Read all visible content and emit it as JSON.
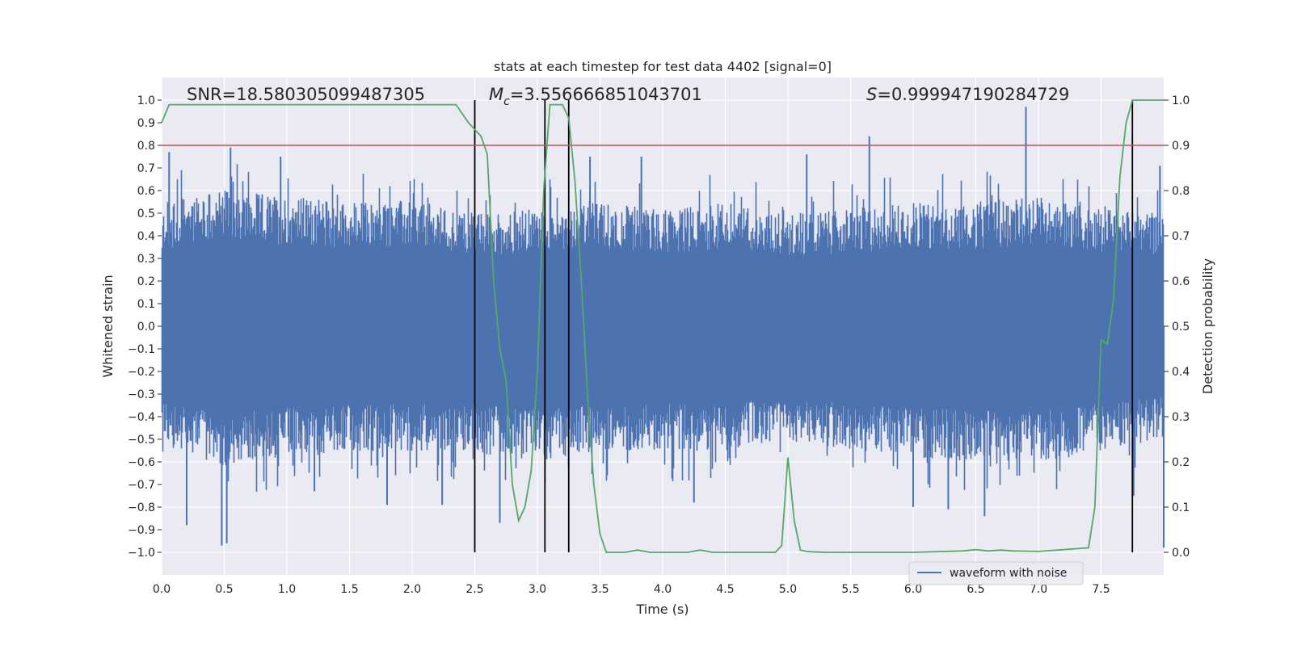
{
  "chart_data": {
    "type": "line",
    "title": "stats at each timestep for test data 4402 [signal=0]",
    "xlabel": "Time (s)",
    "ylabel_left": "Whitened strain",
    "ylabel_right": "Detection probability",
    "xlim": [
      0,
      8
    ],
    "ylim_left": [
      -1.1,
      1.1
    ],
    "ylim_right": [
      -0.05,
      1.05
    ],
    "x_ticks": [
      "0.0",
      "0.5",
      "1.0",
      "1.5",
      "2.0",
      "2.5",
      "3.0",
      "3.5",
      "4.0",
      "4.5",
      "5.0",
      "5.5",
      "6.0",
      "6.5",
      "7.0",
      "7.5"
    ],
    "y_ticks_left": [
      "1.0",
      "0.9",
      "0.8",
      "0.7",
      "0.6",
      "0.5",
      "0.4",
      "0.3",
      "0.2",
      "0.1",
      "0.0",
      "−0.1",
      "−0.2",
      "−0.3",
      "−0.4",
      "−0.5",
      "−0.6",
      "−0.7",
      "−0.8",
      "−0.9",
      "−1.0"
    ],
    "y_ticks_right": [
      "1.0",
      "0.9",
      "0.8",
      "0.7",
      "0.6",
      "0.5",
      "0.4",
      "0.3",
      "0.2",
      "0.1",
      "0.0"
    ],
    "grid": true,
    "annotations": {
      "snr": "SNR=18.580305099487305",
      "mc_symbol": "M",
      "mc_sub": "c",
      "mc_value": "=3.556666851043701",
      "s_symbol": "S",
      "s_value": "=0.999947190284729"
    },
    "threshold": {
      "axis": "right",
      "value": 0.9,
      "color": "#c44e52"
    },
    "vlines": [
      2.5,
      3.06,
      3.25,
      7.75
    ],
    "waveform": {
      "name": "waveform with noise",
      "color": "#4c72b0",
      "envelope_x": [
        0.0,
        0.5,
        1.0,
        1.5,
        2.0,
        2.5,
        3.0,
        3.5,
        4.0,
        4.5,
        5.0,
        5.5,
        6.0,
        6.5,
        7.0,
        7.5,
        8.0
      ],
      "envelope_upper": [
        0.55,
        0.6,
        0.58,
        0.55,
        0.56,
        0.5,
        0.52,
        0.55,
        0.52,
        0.55,
        0.5,
        0.52,
        0.55,
        0.55,
        0.58,
        0.52,
        0.5
      ],
      "envelope_lower": [
        -0.55,
        -0.62,
        -0.58,
        -0.56,
        -0.55,
        -0.55,
        -0.6,
        -0.55,
        -0.55,
        -0.55,
        -0.5,
        -0.55,
        -0.58,
        -0.6,
        -0.6,
        -0.55,
        -0.5
      ],
      "peaks": [
        {
          "x": 0.06,
          "y": 0.77
        },
        {
          "x": 0.55,
          "y": 0.79
        },
        {
          "x": 0.48,
          "y": -0.97
        },
        {
          "x": 0.52,
          "y": -0.96
        },
        {
          "x": 0.2,
          "y": -0.88
        },
        {
          "x": 0.95,
          "y": 0.75
        },
        {
          "x": 1.8,
          "y": -0.79
        },
        {
          "x": 2.24,
          "y": -0.79
        },
        {
          "x": 2.7,
          "y": -0.87
        },
        {
          "x": 3.42,
          "y": 0.75
        },
        {
          "x": 3.83,
          "y": 0.75
        },
        {
          "x": 5.65,
          "y": 0.84
        },
        {
          "x": 6.9,
          "y": 0.97
        },
        {
          "x": 6.57,
          "y": -0.84
        },
        {
          "x": 6.0,
          "y": -0.8
        },
        {
          "x": 6.28,
          "y": -0.81
        },
        {
          "x": 7.97,
          "y": 0.71
        },
        {
          "x": 7.76,
          "y": -0.75
        },
        {
          "x": 8.0,
          "y": -0.98
        },
        {
          "x": 5.15,
          "y": 0.76
        },
        {
          "x": 4.25,
          "y": -0.78
        },
        {
          "x": 1.22,
          "y": -0.73
        }
      ]
    },
    "probability": {
      "name": "detection probability",
      "color": "#55a868",
      "x": [
        0.0,
        0.06,
        0.3,
        0.6,
        1.0,
        1.5,
        2.0,
        2.2,
        2.35,
        2.4,
        2.45,
        2.55,
        2.6,
        2.65,
        2.7,
        2.75,
        2.8,
        2.85,
        2.9,
        2.95,
        3.0,
        3.05,
        3.1,
        3.15,
        3.2,
        3.25,
        3.3,
        3.35,
        3.4,
        3.45,
        3.5,
        3.55,
        3.6,
        3.65,
        3.7,
        3.8,
        3.9,
        4.0,
        4.2,
        4.3,
        4.4,
        4.6,
        4.8,
        4.9,
        4.95,
        5.0,
        5.05,
        5.1,
        5.15,
        5.2,
        5.3,
        5.4,
        5.6,
        6.0,
        6.4,
        6.5,
        6.6,
        6.7,
        6.8,
        7.0,
        7.4,
        7.45,
        7.5,
        7.55,
        7.6,
        7.65,
        7.7,
        7.75,
        7.8,
        7.85,
        7.9,
        7.95,
        8.0
      ],
      "y": [
        0.95,
        0.99,
        0.99,
        0.99,
        0.99,
        0.99,
        0.99,
        0.99,
        0.99,
        0.97,
        0.95,
        0.92,
        0.88,
        0.6,
        0.45,
        0.38,
        0.15,
        0.07,
        0.1,
        0.18,
        0.4,
        0.8,
        0.99,
        0.99,
        0.99,
        0.96,
        0.82,
        0.6,
        0.35,
        0.15,
        0.04,
        0.0,
        0.0,
        0.0,
        0.0,
        0.005,
        0.0,
        0.0,
        0.0,
        0.005,
        0.0,
        0.0,
        0.0,
        0.0,
        0.015,
        0.21,
        0.07,
        0.005,
        0.002,
        0.001,
        0.0,
        0.0,
        0.0,
        0.0,
        0.003,
        0.006,
        0.003,
        0.005,
        0.003,
        0.002,
        0.01,
        0.1,
        0.47,
        0.46,
        0.56,
        0.83,
        0.95,
        1.0,
        1.0,
        1.0,
        1.0,
        1.0,
        1.0
      ]
    },
    "legend": {
      "label": "waveform with noise",
      "placement": "lower-right"
    }
  }
}
